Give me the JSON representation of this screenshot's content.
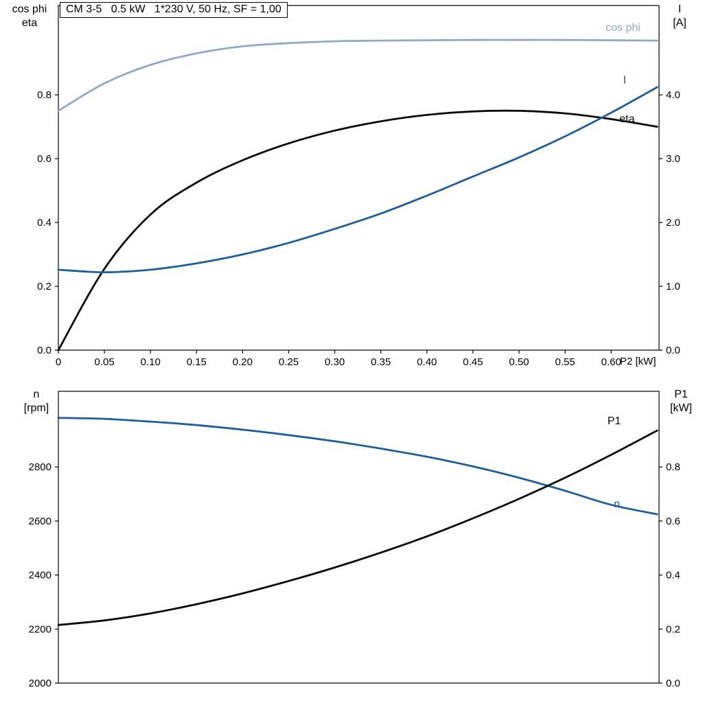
{
  "page": {
    "background": "#ffffff",
    "axis_color": "#000000"
  },
  "colors": {
    "dark_blue": "#1b5e9b",
    "light_blue": "#8fa9c7",
    "black": "#0a0a0a"
  },
  "chart_data": [
    {
      "type": "line",
      "title": "CM 3-5   0.5 kW   1*230 V, 50 Hz, SF = 1,00",
      "x_label": "P2 [kW]",
      "left_axis_label_line1": "cos phi",
      "left_axis_label_line2": "eta",
      "right_axis_label_line1": "I",
      "right_axis_label_line2": "[A]",
      "xlim": [
        0,
        0.652
      ],
      "ylim_left": [
        0,
        1.08
      ],
      "ylim_right": [
        0,
        5.4
      ],
      "grid": false,
      "x_ticks": [
        0,
        0.05,
        0.1,
        0.15,
        0.2,
        0.25,
        0.3,
        0.35,
        0.4,
        0.45,
        0.5,
        0.55,
        0.6
      ],
      "x_tick_labels": [
        "0",
        "0.05",
        "0.10",
        "0.15",
        "0.20",
        "0.25",
        "0.30",
        "0.35",
        "0.40",
        "0.45",
        "0.50",
        "0.55",
        "0.60"
      ],
      "left_ticks": [
        0,
        0.2,
        0.4,
        0.6,
        0.8
      ],
      "left_tick_labels": [
        "0.0",
        "0.2",
        "0.4",
        "0.6",
        "0.8"
      ],
      "right_ticks": [
        0,
        1,
        2,
        3,
        4
      ],
      "right_tick_labels": [
        "0.0",
        "1.0",
        "2.0",
        "3.0",
        "4.0"
      ],
      "x": [
        0,
        0.05,
        0.1,
        0.15,
        0.2,
        0.25,
        0.3,
        0.35,
        0.4,
        0.45,
        0.5,
        0.55,
        0.6,
        0.65
      ],
      "series": [
        {
          "name": "cos phi",
          "axis": "left",
          "color": "#8fa9c7",
          "label": "cos phi",
          "label_at": [
            0.594,
            1.0
          ],
          "values": [
            0.75,
            0.836,
            0.894,
            0.93,
            0.952,
            0.962,
            0.968,
            0.97,
            0.971,
            0.972,
            0.972,
            0.972,
            0.971,
            0.97
          ]
        },
        {
          "name": "eta",
          "axis": "left",
          "color": "#0a0a0a",
          "label": "eta",
          "label_at": [
            0.609,
            0.714
          ],
          "values": [
            0.0,
            0.255,
            0.425,
            0.525,
            0.595,
            0.648,
            0.688,
            0.717,
            0.737,
            0.748,
            0.75,
            0.742,
            0.724,
            0.7
          ]
        },
        {
          "name": "I",
          "axis": "right",
          "color": "#1b5e9b",
          "label": "I",
          "label_at": [
            0.613,
            4.18
          ],
          "values": [
            1.26,
            1.22,
            1.26,
            1.36,
            1.5,
            1.68,
            1.9,
            2.14,
            2.42,
            2.72,
            3.02,
            3.35,
            3.72,
            4.12
          ]
        }
      ]
    },
    {
      "type": "line",
      "title": "",
      "x_label": "",
      "left_axis_label_line1": "n",
      "left_axis_label_line2": "[rpm]",
      "right_axis_label_line1": "P1",
      "right_axis_label_line2": "[kW]",
      "xlim": [
        0,
        0.652
      ],
      "ylim_left": [
        2000,
        3080
      ],
      "ylim_right": [
        0,
        1.08
      ],
      "grid": false,
      "x_ticks": [],
      "x_tick_labels": [],
      "left_ticks": [
        2000,
        2200,
        2400,
        2600,
        2800
      ],
      "left_tick_labels": [
        "2000",
        "2200",
        "2400",
        "2600",
        "2800"
      ],
      "right_ticks": [
        0,
        0.2,
        0.4,
        0.6,
        0.8
      ],
      "right_tick_labels": [
        "0.0",
        "0.2",
        "0.4",
        "0.6",
        "0.8"
      ],
      "x": [
        0,
        0.05,
        0.1,
        0.15,
        0.2,
        0.25,
        0.3,
        0.35,
        0.4,
        0.45,
        0.5,
        0.55,
        0.6,
        0.65
      ],
      "series": [
        {
          "name": "n",
          "axis": "left",
          "color": "#1b5e9b",
          "label": "n",
          "label_at": [
            0.603,
            2650
          ],
          "values": [
            2982,
            2978,
            2968,
            2955,
            2938,
            2918,
            2895,
            2868,
            2838,
            2802,
            2760,
            2712,
            2660,
            2625
          ]
        },
        {
          "name": "P1",
          "axis": "right",
          "color": "#0a0a0a",
          "label": "P1",
          "label_at": [
            0.596,
            0.958
          ],
          "values": [
            0.215,
            0.232,
            0.258,
            0.292,
            0.332,
            0.378,
            0.428,
            0.483,
            0.543,
            0.61,
            0.682,
            0.76,
            0.845,
            0.935
          ]
        }
      ]
    }
  ]
}
